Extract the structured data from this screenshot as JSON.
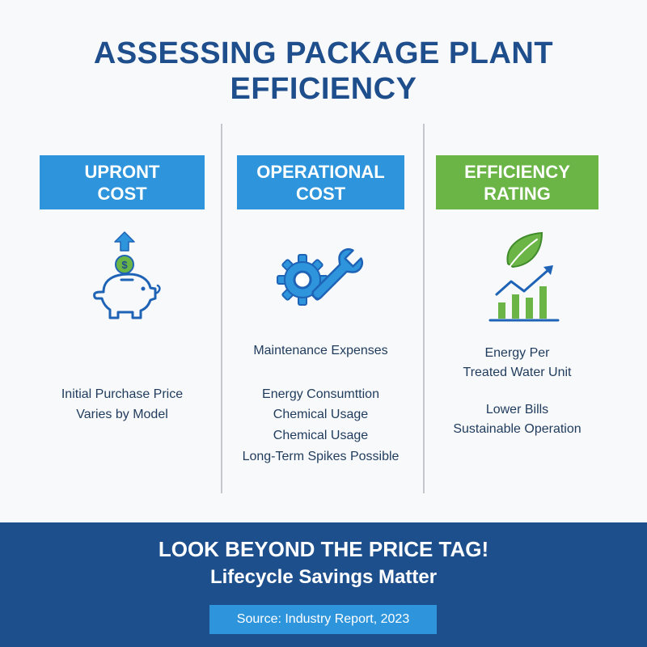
{
  "title": {
    "line1": "ASSESSING PACKAGE PLANT",
    "line2": "EFFICIENCY"
  },
  "columns": [
    {
      "header": [
        "UPRONT",
        "COST"
      ],
      "icon": "piggy-bank-dollar-icon",
      "lines": [
        "Initial Purchase Price",
        "Varies by Model"
      ]
    },
    {
      "header": [
        "OPERATIONAL",
        "COST"
      ],
      "icon": "gear-wrench-icon",
      "lines": [
        "Maintenance Expenses",
        "Energy Consumttion",
        "Chemical Usage",
        "Chemical Usage",
        "Long-Term Spikes Possible"
      ]
    },
    {
      "header": [
        "EFFICIENCY",
        "RATING"
      ],
      "icon": "leaf-growth-chart-icon",
      "lines": [
        "Energy Per",
        "Treated Water Unit",
        "Lower Bills",
        "Sustainable Operation"
      ]
    }
  ],
  "footer": {
    "headline": "LOOK BEYOND THE PRICE TAG!",
    "subline": "Lifecycle Savings Matter",
    "source": "Source: Industry Report, 2023"
  },
  "colors": {
    "title": "#1e4e8c",
    "header_blue": "#2e95dd",
    "header_green": "#6ab546",
    "footer_bg": "#1d4f8d",
    "icon_blue": "#1e63b5",
    "icon_green": "#5aad3a"
  }
}
